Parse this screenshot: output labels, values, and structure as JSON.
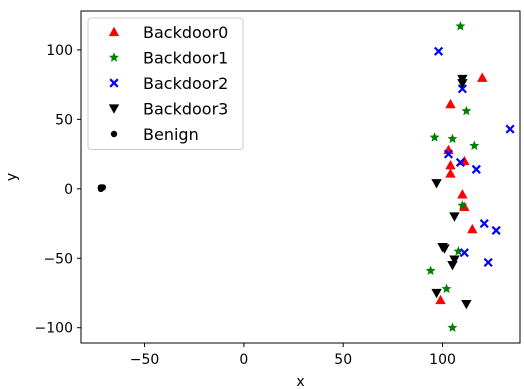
{
  "chart_data": {
    "type": "scatter",
    "title": "",
    "xlabel": "x",
    "ylabel": "y",
    "xlim": [
      -82,
      139
    ],
    "ylim": [
      -111,
      128
    ],
    "xticks": [
      -50,
      0,
      50,
      100
    ],
    "yticks": [
      -100,
      -50,
      0,
      50,
      100
    ],
    "xtick_labels": [
      "−50",
      "0",
      "50",
      "100"
    ],
    "ytick_labels": [
      "−100",
      "−50",
      "0",
      "50",
      "100"
    ],
    "grid": false,
    "legend_position": "top-left",
    "series": [
      {
        "name": "Backdoor0",
        "marker": "triangle-up",
        "color": "#ff0000",
        "points": [
          {
            "x": 120,
            "y": 80
          },
          {
            "x": 104,
            "y": 61
          },
          {
            "x": 103,
            "y": 28
          },
          {
            "x": 111,
            "y": 20
          },
          {
            "x": 104,
            "y": 17
          },
          {
            "x": 104,
            "y": 11
          },
          {
            "x": 110,
            "y": -4
          },
          {
            "x": 111,
            "y": -13
          },
          {
            "x": 115,
            "y": -29
          },
          {
            "x": 99,
            "y": -80
          }
        ]
      },
      {
        "name": "Backdoor1",
        "marker": "star",
        "color": "#008000",
        "points": [
          {
            "x": 109,
            "y": 117
          },
          {
            "x": 112,
            "y": 56
          },
          {
            "x": 96,
            "y": 37
          },
          {
            "x": 105,
            "y": 36
          },
          {
            "x": 116,
            "y": 31
          },
          {
            "x": 110,
            "y": -12
          },
          {
            "x": 108,
            "y": -45
          },
          {
            "x": 94,
            "y": -59
          },
          {
            "x": 102,
            "y": -72
          },
          {
            "x": 105,
            "y": -100
          }
        ]
      },
      {
        "name": "Backdoor2",
        "marker": "x",
        "color": "#0000ff",
        "points": [
          {
            "x": 98,
            "y": 99
          },
          {
            "x": 110,
            "y": 72
          },
          {
            "x": 134,
            "y": 43
          },
          {
            "x": 103,
            "y": 25
          },
          {
            "x": 109,
            "y": 19
          },
          {
            "x": 117,
            "y": 14
          },
          {
            "x": 121,
            "y": -25
          },
          {
            "x": 127,
            "y": -30
          },
          {
            "x": 111,
            "y": -46
          },
          {
            "x": 123,
            "y": -53
          }
        ]
      },
      {
        "name": "Backdoor3",
        "marker": "triangle-down",
        "color": "#000000",
        "points": [
          {
            "x": 110,
            "y": 79
          },
          {
            "x": 110,
            "y": 76
          },
          {
            "x": 97,
            "y": 4
          },
          {
            "x": 106,
            "y": -20
          },
          {
            "x": 100,
            "y": -42
          },
          {
            "x": 101,
            "y": -43
          },
          {
            "x": 106,
            "y": -51
          },
          {
            "x": 105,
            "y": -55
          },
          {
            "x": 97,
            "y": -75
          },
          {
            "x": 112,
            "y": -83
          }
        ]
      },
      {
        "name": "Benign",
        "marker": "dot",
        "color": "#000000",
        "points": [
          {
            "x": -72,
            "y": 0
          },
          {
            "x": -71,
            "y": 1
          },
          {
            "x": -72,
            "y": 1
          }
        ]
      }
    ]
  }
}
